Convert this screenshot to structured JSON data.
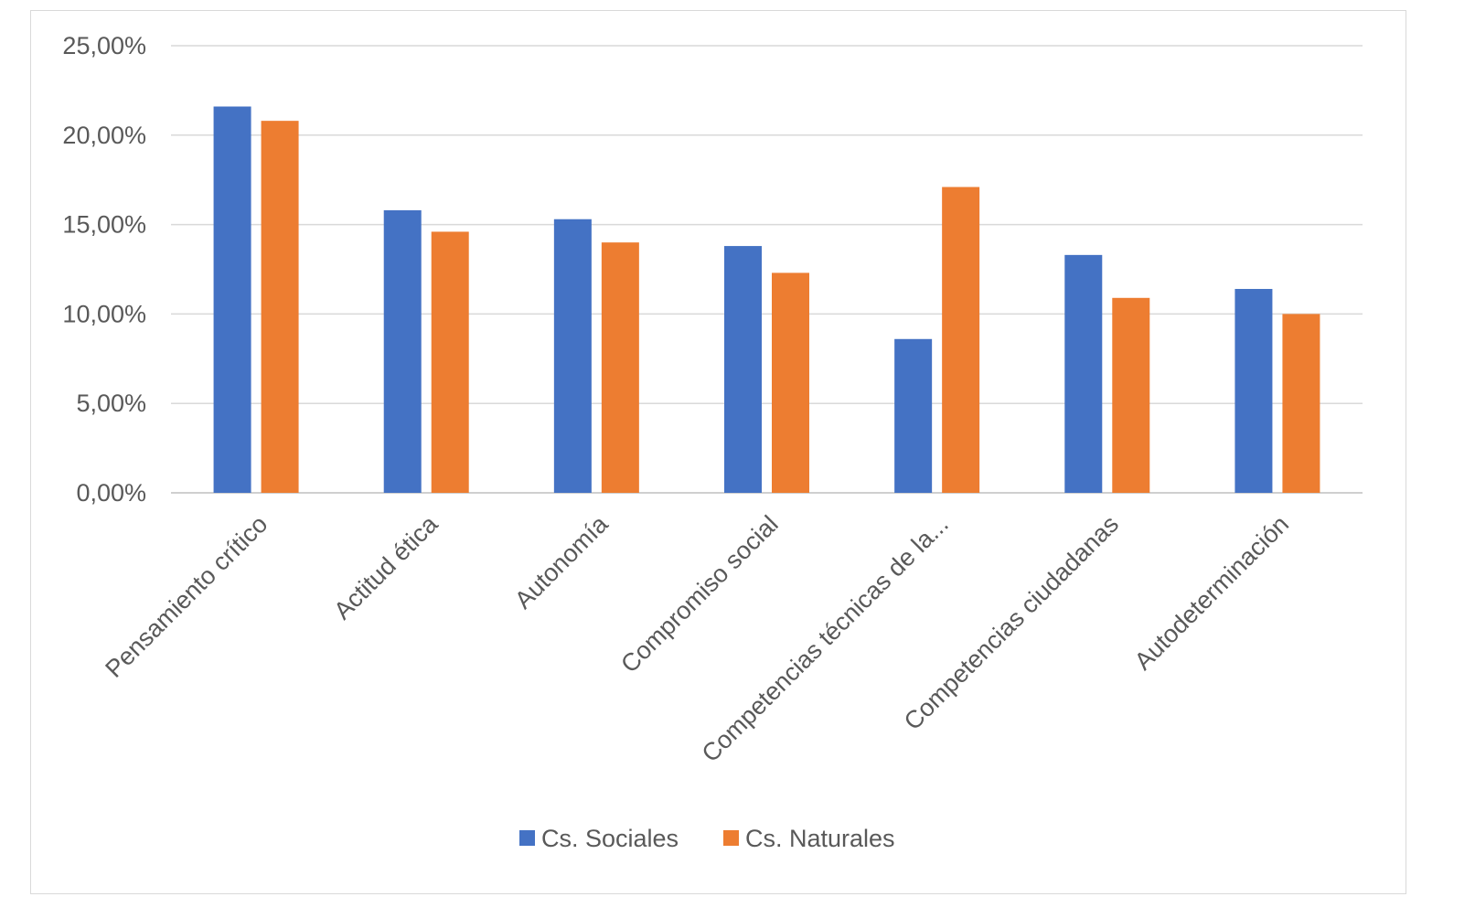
{
  "chart_data": {
    "type": "bar",
    "title": "",
    "xlabel": "",
    "ylabel": "",
    "categories": [
      "Pensamiento crítico",
      "Actitud ética",
      "Autonomía",
      "Compromiso social",
      "Competencias técnicas de la...",
      "Competencias ciudadanas",
      "Autodeterminación"
    ],
    "series": [
      {
        "name": "Cs. Sociales",
        "color": "#4472c4",
        "values": [
          21.6,
          15.8,
          15.3,
          13.8,
          8.6,
          13.3,
          11.4
        ]
      },
      {
        "name": "Cs. Naturales",
        "color": "#ed7d31",
        "values": [
          20.8,
          14.6,
          14.0,
          12.3,
          17.1,
          10.9,
          10.0
        ]
      }
    ],
    "ylim": [
      0,
      25
    ],
    "yticks": [
      "0,00%",
      "5,00%",
      "10,00%",
      "15,00%",
      "20,00%",
      "25,00%"
    ],
    "grid": true,
    "legend_position": "bottom"
  }
}
